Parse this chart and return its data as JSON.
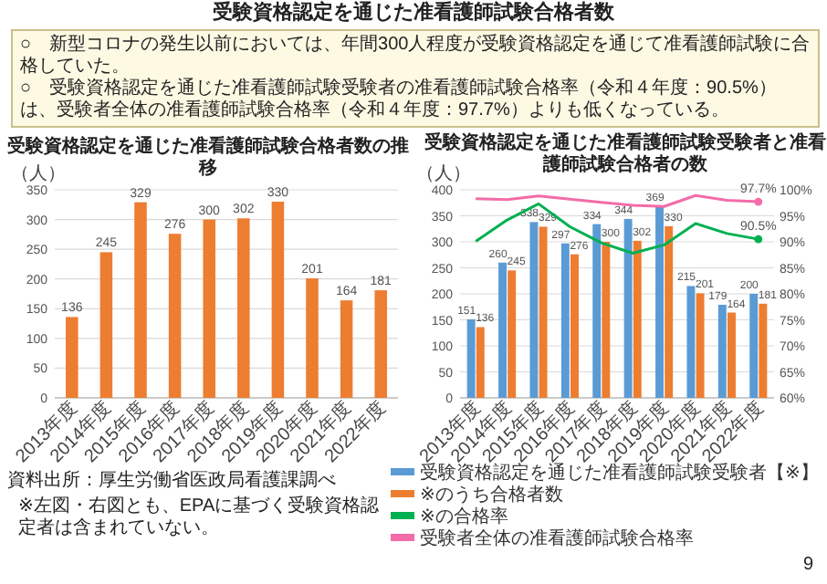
{
  "chart_data": [
    {
      "type": "bar",
      "title": "受験資格認定を通じた准看護師試験合格者数の推移",
      "ylabel": "（人）",
      "categories": [
        "2013年度",
        "2014年度",
        "2015年度",
        "2016年度",
        "2017年度",
        "2018年度",
        "2019年度",
        "2020年度",
        "2021年度",
        "2022年度"
      ],
      "series": [
        {
          "color": "#ed7d31",
          "values": [
            136,
            245,
            329,
            276,
            300,
            302,
            330,
            201,
            164,
            181
          ]
        }
      ],
      "ylim": [
        0,
        350
      ],
      "yticks": [
        0,
        50,
        100,
        150,
        200,
        250,
        300,
        350
      ],
      "grid": "y",
      "data_labels": true,
      "annotations": [
        "受験資格認定を通じた准看護師試験合格者数",
        "○　新型コロナの発生以前においては、年間300人程度が受験資格認定を通じて准看護師試験に合格していた。",
        "○　受験資格認定を通じた准看護師試験受験者の准看護師試験合格率（令和４年度：90.5%）は、受験者全体の准看護師試験合格率（令和４年度：97.7%）よりも低くなっている。",
        "資料出所：厚生労働省医政局看護課調べ",
        "※左図・右図とも、EPAに基づく受験資格認定者は含まれていない。"
      ]
    },
    {
      "type": "bar",
      "title": "受験資格認定を通じた准看護師試験受験者と准看護師試験合格者の数",
      "ylabel": "（人）",
      "categories": [
        "2013年度",
        "2014年度",
        "2015年度",
        "2016年度",
        "2017年度",
        "2018年度",
        "2019年度",
        "2020年度",
        "2021年度",
        "2022年度"
      ],
      "series": [
        {
          "name": "受験資格認定を通じた准看護師試験受験者【※】",
          "color": "#5b9bd5",
          "values": [
            151,
            260,
            338,
            297,
            334,
            344,
            369,
            215,
            179,
            200
          ],
          "value_labels": [
            "151",
            "260",
            "338",
            "297",
            "334",
            "344",
            "369",
            "215",
            "179",
            "200"
          ]
        },
        {
          "name": "※のうち合格者数",
          "color": "#ed7d31",
          "values": [
            136,
            245,
            329,
            276,
            300,
            302,
            330,
            201,
            164,
            181
          ],
          "value_labels": [
            "136",
            "245",
            "329",
            "276",
            "300",
            "302",
            "330",
            "201",
            "164",
            "181"
          ]
        },
        {
          "name": "※の合格率",
          "type": "line",
          "axis": "y2",
          "color": "#00b050",
          "values": [
            90.1,
            94.2,
            97.3,
            92.9,
            89.8,
            87.8,
            89.4,
            93.5,
            91.6,
            90.5
          ],
          "value_labels": [
            null,
            null,
            null,
            null,
            null,
            null,
            null,
            null,
            null,
            "90.5%"
          ]
        },
        {
          "name": "受験者全体の准看護師試験合格率",
          "type": "line",
          "axis": "y2",
          "color": "#f36ca8",
          "values": [
            98.3,
            98.1,
            98.8,
            98.2,
            97.6,
            97.0,
            96.8,
            98.9,
            98.0,
            97.7
          ],
          "value_labels": [
            null,
            null,
            null,
            null,
            null,
            null,
            null,
            null,
            null,
            "97.7%"
          ]
        }
      ],
      "ylim": [
        0,
        400
      ],
      "yticks": [
        0,
        50,
        100,
        150,
        200,
        250,
        300,
        350,
        400
      ],
      "y2lim": [
        60,
        100
      ],
      "y2ticks": [
        {
          "value": 60,
          "label": "60%"
        },
        {
          "value": 65,
          "label": "65%"
        },
        {
          "value": 70,
          "label": "70%"
        },
        {
          "value": 75,
          "label": "75%"
        },
        {
          "value": 80,
          "label": "80%"
        },
        {
          "value": 85,
          "label": "85%"
        },
        {
          "value": 90,
          "label": "90%"
        },
        {
          "value": 95,
          "label": "95%"
        },
        {
          "value": 100,
          "label": "100%"
        }
      ],
      "grid": "y",
      "legend": "bottom",
      "annotations": [
        "9"
      ]
    }
  ]
}
